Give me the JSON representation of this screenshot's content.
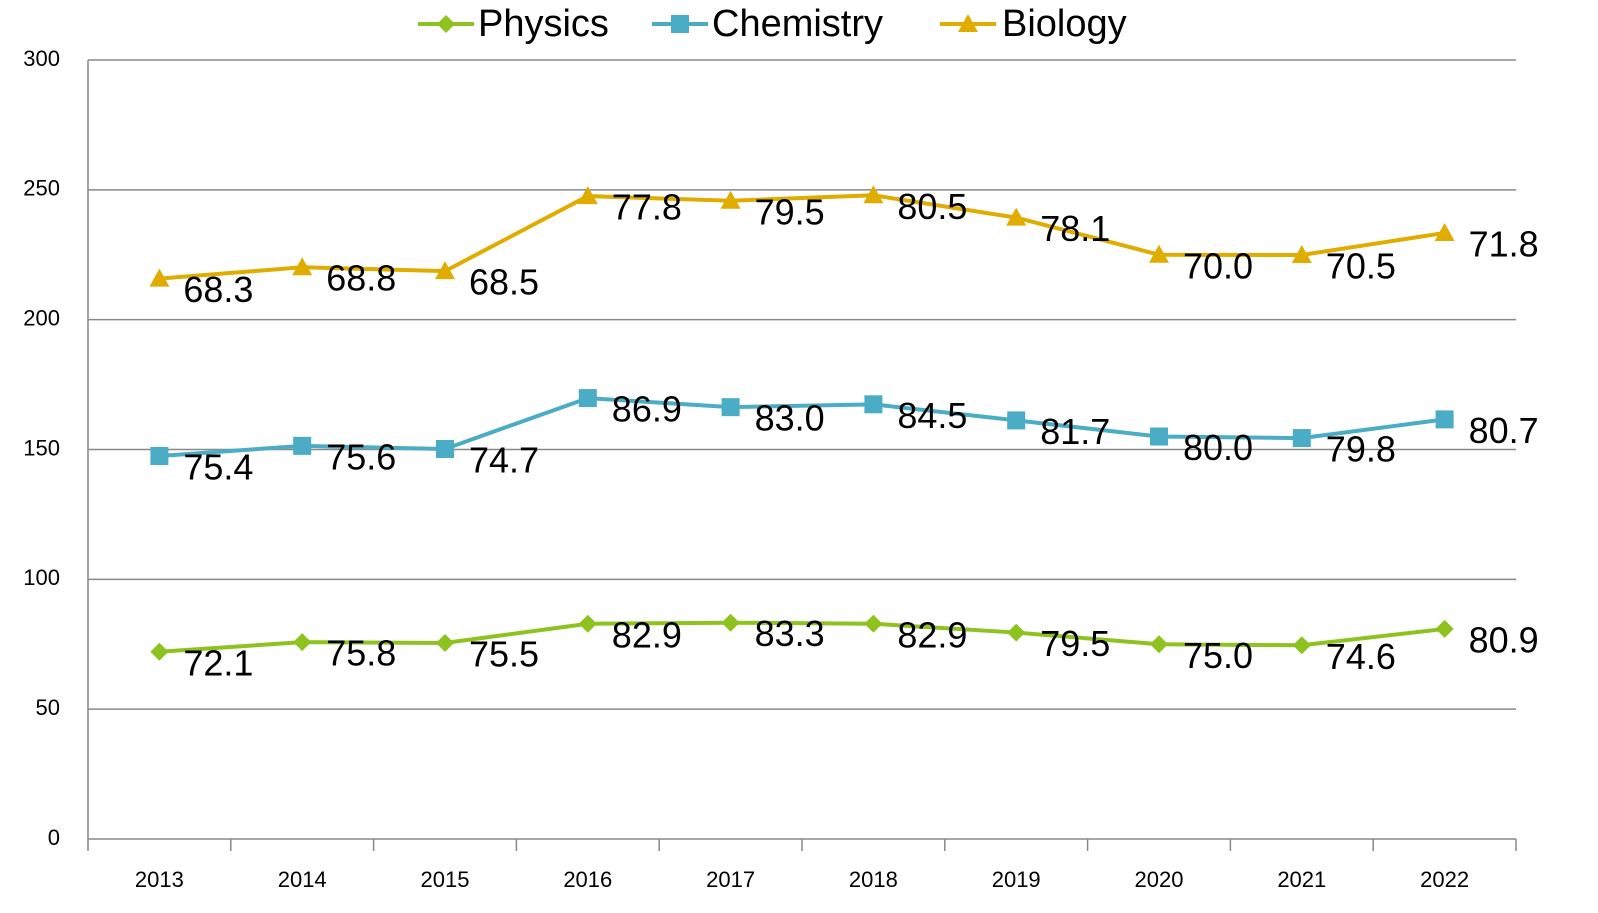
{
  "chart_data": {
    "type": "line",
    "stacked": true,
    "categories": [
      "2013",
      "2014",
      "2015",
      "2016",
      "2017",
      "2018",
      "2019",
      "2020",
      "2021",
      "2022"
    ],
    "series": [
      {
        "name": "Physics",
        "color": "#8dc21f",
        "marker": "diamond",
        "values": [
          72.1,
          75.8,
          75.5,
          82.9,
          83.3,
          82.9,
          79.5,
          75.0,
          74.6,
          80.9
        ],
        "value_labels": [
          "72.1",
          "75.8",
          "75.5",
          "82.9",
          "83.3",
          "82.9",
          "79.5",
          "75.0",
          "74.6",
          "80.9"
        ]
      },
      {
        "name": "Chemistry",
        "color": "#4bacc6",
        "marker": "square",
        "values": [
          75.4,
          75.6,
          74.7,
          86.9,
          83.0,
          84.5,
          81.7,
          80.0,
          79.8,
          80.7
        ],
        "value_labels": [
          "75.4",
          "75.6",
          "74.7",
          "86.9",
          "83.0",
          "84.5",
          "81.7",
          "80.0",
          "79.8",
          "80.7"
        ]
      },
      {
        "name": "Biology",
        "color": "#e0ac00",
        "marker": "triangle",
        "values": [
          68.3,
          68.8,
          68.5,
          77.8,
          79.5,
          80.5,
          78.1,
          70.0,
          70.5,
          71.8
        ],
        "value_labels": [
          "68.3",
          "68.8",
          "68.5",
          "77.8",
          "79.5",
          "80.5",
          "78.1",
          "70.0",
          "70.5",
          "71.8"
        ]
      }
    ],
    "ylim": [
      0,
      300
    ],
    "yticks": [
      0,
      50,
      100,
      150,
      200,
      250,
      300
    ],
    "grid": true,
    "legend": "top"
  }
}
